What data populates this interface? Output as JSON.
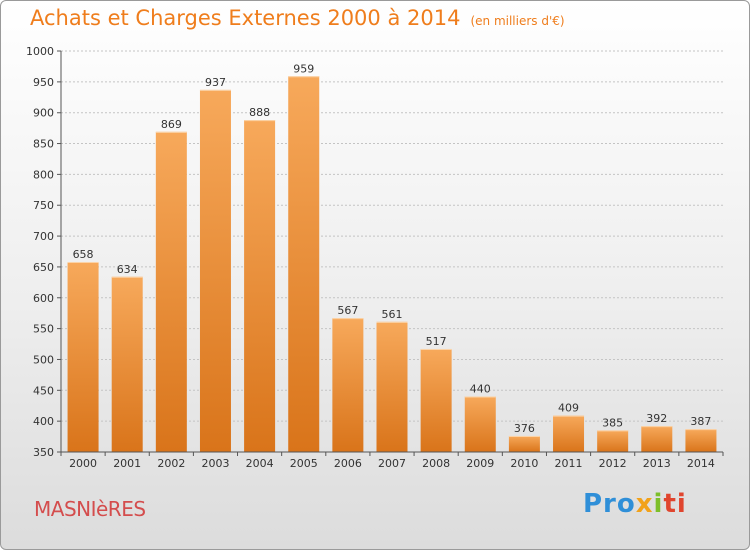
{
  "header": {
    "title": "Achats et Charges Externes 2000 à 2014",
    "subtitle": "(en milliers d'€)"
  },
  "footer": {
    "city": "MASNIèRES",
    "brand": [
      "Pro",
      "x",
      "i",
      "ti"
    ]
  },
  "colors": {
    "title": "#ef7d1c",
    "bar_top": "#f7a95b",
    "bar_bottom": "#d9741a",
    "city": "#d44d4d"
  },
  "chart_data": {
    "type": "bar",
    "categories": [
      "2000",
      "2001",
      "2002",
      "2003",
      "2004",
      "2005",
      "2006",
      "2007",
      "2008",
      "2009",
      "2010",
      "2011",
      "2012",
      "2013",
      "2014"
    ],
    "values": [
      658,
      634,
      869,
      937,
      888,
      959,
      567,
      561,
      517,
      440,
      376,
      409,
      385,
      392,
      387
    ],
    "title": "Achats et Charges Externes 2000 à 2014",
    "subtitle": "(en milliers d'€)",
    "xlabel": "",
    "ylabel": "",
    "ylim": [
      350,
      1000
    ],
    "yticks": [
      350,
      400,
      450,
      500,
      550,
      600,
      650,
      700,
      750,
      800,
      850,
      900,
      950,
      1000
    ],
    "grid": true,
    "data_labels": true
  }
}
